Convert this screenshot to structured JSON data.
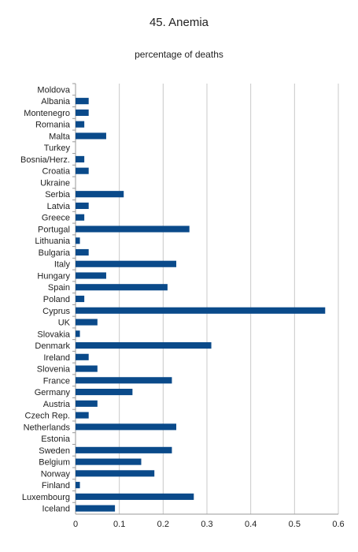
{
  "chart_data": {
    "type": "bar",
    "orientation": "horizontal",
    "title": "45. Anemia",
    "subtitle": "percentage of deaths",
    "xlabel": "",
    "ylabel": "",
    "xlim": [
      0,
      0.6
    ],
    "x_ticks": [
      "0",
      "0.1",
      "0.2",
      "0.3",
      "0.4",
      "0.5",
      "0.6"
    ],
    "grid": true,
    "bar_color": "#0a4a8a",
    "categories": [
      "Moldova",
      "Albania",
      "Montenegro",
      "Romania",
      "Malta",
      "Turkey",
      "Bosnia/Herz.",
      "Croatia",
      "Ukraine",
      "Serbia",
      "Latvia",
      "Greece",
      "Portugal",
      "Lithuania",
      "Bulgaria",
      "Italy",
      "Hungary",
      "Spain",
      "Poland",
      "Cyprus",
      "UK",
      "Slovakia",
      "Denmark",
      "Ireland",
      "Slovenia",
      "France",
      "Germany",
      "Austria",
      "Czech Rep.",
      "Netherlands",
      "Estonia",
      "Sweden",
      "Belgium",
      "Norway",
      "Finland",
      "Luxembourg",
      "Iceland"
    ],
    "values": [
      0,
      0.03,
      0.03,
      0.02,
      0.07,
      0,
      0.02,
      0.03,
      0,
      0.11,
      0.03,
      0.02,
      0.26,
      0.01,
      0.03,
      0.23,
      0.07,
      0.21,
      0.02,
      0.57,
      0.05,
      0.01,
      0.31,
      0.03,
      0.05,
      0.22,
      0.13,
      0.05,
      0.03,
      0.23,
      0,
      0.22,
      0.15,
      0.18,
      0.01,
      0.27,
      0.09
    ]
  }
}
